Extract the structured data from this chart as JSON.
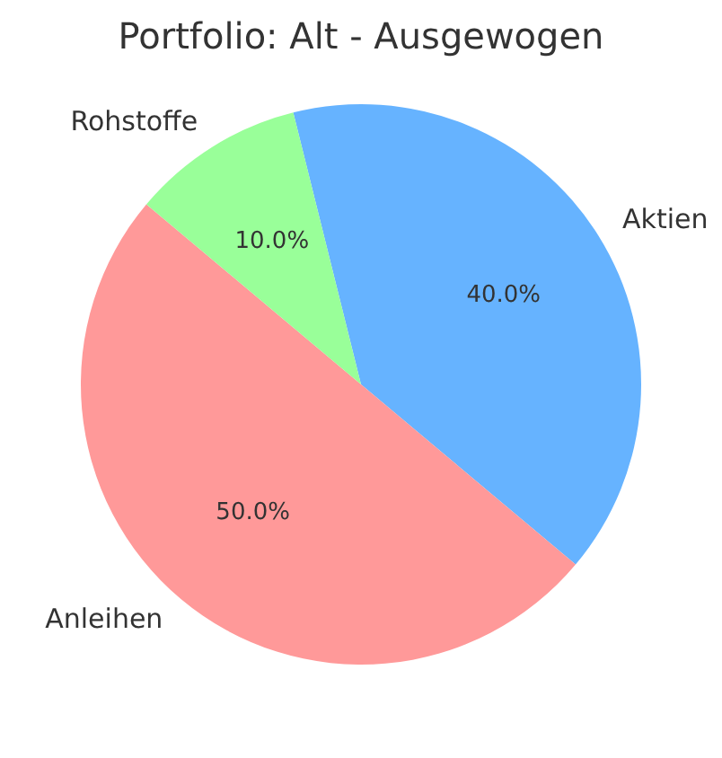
{
  "chart_data": {
    "type": "pie",
    "title": "Portfolio: Alt - Ausgewogen",
    "categories": [
      "Aktien",
      "Anleihen",
      "Rohstoffe"
    ],
    "values": [
      40,
      50,
      10
    ],
    "value_labels": [
      "40.0%",
      "50.0%",
      "10.0%"
    ],
    "colors": [
      "#66b3ff",
      "#ff9999",
      "#99ff99"
    ],
    "legend": false
  }
}
